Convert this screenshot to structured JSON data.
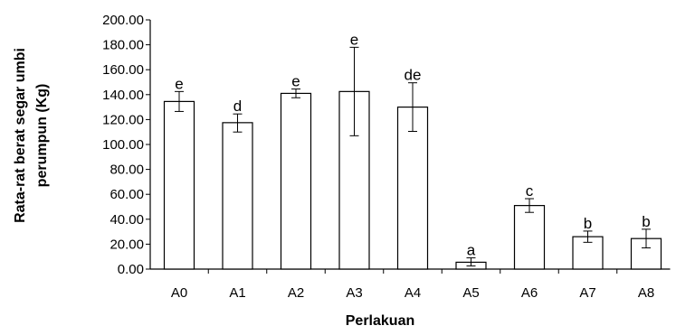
{
  "chart_data": {
    "type": "bar",
    "categories": [
      "A0",
      "A1",
      "A2",
      "A3",
      "A4",
      "A5",
      "A6",
      "A7",
      "A8"
    ],
    "values": [
      134.5,
      117.5,
      141.0,
      142.5,
      130.0,
      5.5,
      51.0,
      26.0,
      24.5
    ],
    "error_low": [
      126.5,
      110.0,
      137.5,
      107.0,
      110.5,
      2.5,
      45.5,
      21.5,
      17.0
    ],
    "error_high": [
      142.5,
      124.5,
      144.5,
      178.0,
      149.5,
      9.0,
      56.5,
      30.5,
      32.0
    ],
    "significance_labels": [
      "e",
      "d",
      "e",
      "e",
      "de",
      "a",
      "c",
      "b",
      "b"
    ],
    "ylim": [
      0,
      200
    ],
    "yticks": [
      "200.00",
      "180.00",
      "160.00",
      "140.00",
      "120.00",
      "100.00",
      "80.00",
      "60.00",
      "40.00",
      "20.00",
      "0.00"
    ],
    "xlabel": "Perlakuan",
    "ylabel_lines": [
      "Rata-rat berat segar umbi",
      "perumpun (Kg)"
    ],
    "legend": "none",
    "grid": false,
    "bar_fill": "#ffffff",
    "bar_stroke": "#000000"
  }
}
